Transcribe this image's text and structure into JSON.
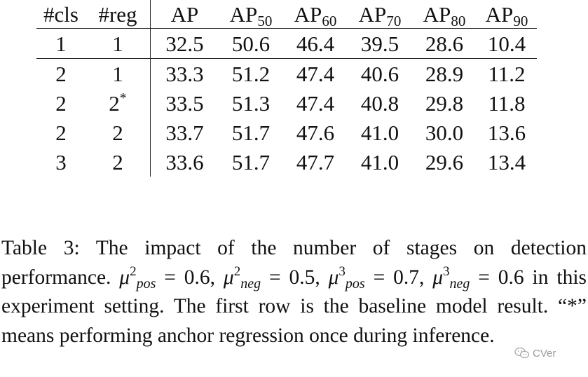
{
  "table": {
    "headers": [
      {
        "main": "#cls",
        "sub": ""
      },
      {
        "main": "#reg",
        "sub": ""
      },
      {
        "main": "AP",
        "sub": ""
      },
      {
        "main": "AP",
        "sub": "50"
      },
      {
        "main": "AP",
        "sub": "60"
      },
      {
        "main": "AP",
        "sub": "70"
      },
      {
        "main": "AP",
        "sub": "80"
      },
      {
        "main": "AP",
        "sub": "90"
      }
    ],
    "rows": [
      {
        "cls": "1",
        "reg": "1",
        "reg_mark": "",
        "ap": "32.5",
        "ap50": "50.6",
        "ap60": "46.4",
        "ap70": "39.5",
        "ap80": "28.6",
        "ap90": "10.4"
      },
      {
        "cls": "2",
        "reg": "1",
        "reg_mark": "",
        "ap": "33.3",
        "ap50": "51.2",
        "ap60": "47.4",
        "ap70": "40.6",
        "ap80": "28.9",
        "ap90": "11.2"
      },
      {
        "cls": "2",
        "reg": "2",
        "reg_mark": "*",
        "ap": "33.5",
        "ap50": "51.3",
        "ap60": "47.4",
        "ap70": "40.8",
        "ap80": "29.8",
        "ap90": "11.8"
      },
      {
        "cls": "2",
        "reg": "2",
        "reg_mark": "",
        "ap": "33.7",
        "ap50": "51.7",
        "ap60": "47.6",
        "ap70": "41.0",
        "ap80": "30.0",
        "ap90": "13.6"
      },
      {
        "cls": "3",
        "reg": "2",
        "reg_mark": "",
        "ap": "33.6",
        "ap50": "51.7",
        "ap60": "47.7",
        "ap70": "41.0",
        "ap80": "29.6",
        "ap90": "13.4"
      }
    ]
  },
  "caption": {
    "lead": "Table 3: The impact of the number of stages on detection performance. ",
    "m1": {
      "sym": "μ",
      "sup": "2",
      "sub": "pos",
      "val": " = 0.6, "
    },
    "m2": {
      "sym": "μ",
      "sup": "2",
      "sub": "neg",
      "val": " = 0.5, "
    },
    "m3": {
      "sym": "μ",
      "sup": "3",
      "sub": "pos",
      "val": " = 0.7, "
    },
    "m4": {
      "sym": "μ",
      "sup": "3",
      "sub": "neg",
      "val": " = 0.6"
    },
    "tail": " in this experiment setting. The first row is the baseline model result. “*” means performing anchor regression once during inference."
  },
  "watermark": {
    "text": "CVer",
    "icon": "wechat-icon"
  }
}
